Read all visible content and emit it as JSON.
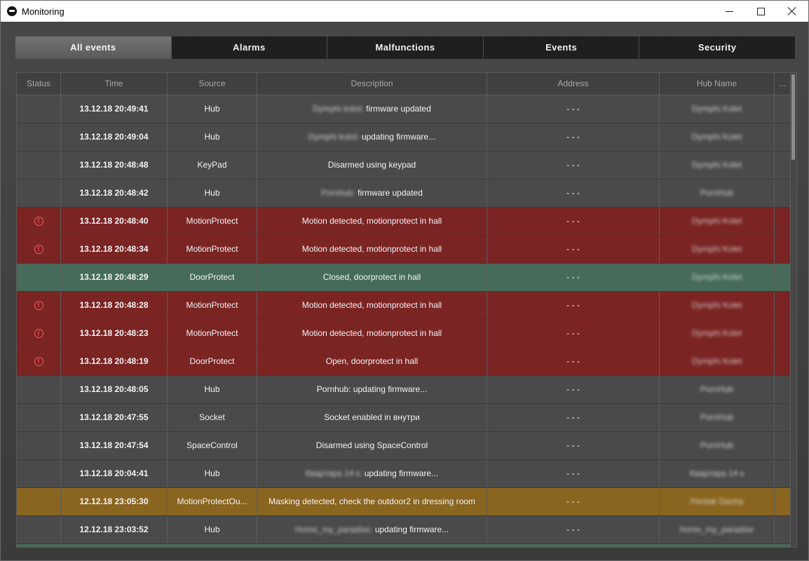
{
  "window": {
    "title": "Monitoring"
  },
  "tabs": [
    {
      "label": "All events",
      "active": true
    },
    {
      "label": "Alarms",
      "active": false
    },
    {
      "label": "Malfunctions",
      "active": false
    },
    {
      "label": "Events",
      "active": false
    },
    {
      "label": "Security",
      "active": false
    }
  ],
  "columns": [
    "Status",
    "Time",
    "Source",
    "Description",
    "Address",
    "Hub Name",
    "..."
  ],
  "rows": [
    {
      "type": "normal",
      "status": "",
      "time": "13.12.18   20:49:41",
      "source": "Hub",
      "desc_blur": "Dymphi kolot:",
      "desc": "firmware updated",
      "address": "- - -",
      "hub": "Dymphi Kolet"
    },
    {
      "type": "normal",
      "status": "",
      "time": "13.12.18   20:49:04",
      "source": "Hub",
      "desc_blur": "Dymphi kolot:",
      "desc": "updating firmware...",
      "address": "- - -",
      "hub": "Dymphi Kolet"
    },
    {
      "type": "normal",
      "status": "",
      "time": "13.12.18   20:48:48",
      "source": "KeyPad",
      "desc_blur": "",
      "desc": "Disarmed using keypad",
      "address": "- - -",
      "hub": "Dymphi Kolet"
    },
    {
      "type": "normal",
      "status": "",
      "time": "13.12.18   20:48:42",
      "source": "Hub",
      "desc_blur": "Pornhub:",
      "desc": "firmware updated",
      "address": "- - -",
      "hub": "PornHub"
    },
    {
      "type": "alarm",
      "status": "!",
      "time": "13.12.18   20:48:40",
      "source": "MotionProtect",
      "desc_blur": "",
      "desc": "Motion detected, motionprotect in hall",
      "address": "- - -",
      "hub": "Dymphi Kolet"
    },
    {
      "type": "alarm",
      "status": "!",
      "time": "13.12.18   20:48:34",
      "source": "MotionProtect",
      "desc_blur": "",
      "desc": "Motion detected, motionprotect in hall",
      "address": "- - -",
      "hub": "Dymphi Kolet"
    },
    {
      "type": "closed",
      "status": "",
      "time": "13.12.18   20:48:29",
      "source": "DoorProtect",
      "desc_blur": "",
      "desc": "Closed, doorprotect in hall",
      "address": "- - -",
      "hub": "Dymphi Kolet"
    },
    {
      "type": "alarm",
      "status": "!",
      "time": "13.12.18   20:48:28",
      "source": "MotionProtect",
      "desc_blur": "",
      "desc": "Motion detected, motionprotect in hall",
      "address": "- - -",
      "hub": "Dymphi Kolet"
    },
    {
      "type": "alarm",
      "status": "!",
      "time": "13.12.18   20:48:23",
      "source": "MotionProtect",
      "desc_blur": "",
      "desc": "Motion detected, motionprotect in hall",
      "address": "- - -",
      "hub": "Dymphi Kolet"
    },
    {
      "type": "alarm",
      "status": "!",
      "time": "13.12.18   20:48:19",
      "source": "DoorProtect",
      "desc_blur": "",
      "desc": "Open, doorprotect in hall",
      "address": "- - -",
      "hub": "Dymphi Kolet"
    },
    {
      "type": "normal",
      "status": "",
      "time": "13.12.18   20:48:05",
      "source": "Hub",
      "desc_blur": "",
      "desc": "Pornhub: updating firmware...",
      "address": "- - -",
      "hub": "PornHub"
    },
    {
      "type": "normal",
      "status": "",
      "time": "13.12.18   20:47:55",
      "source": "Socket",
      "desc_blur": "",
      "desc": "Socket enabled in внутри",
      "address": "- - -",
      "hub": "PornHub"
    },
    {
      "type": "normal",
      "status": "",
      "time": "13.12.18   20:47:54",
      "source": "SpaceControl",
      "desc_blur": "",
      "desc": "Disarmed using SpaceControl",
      "address": "- - -",
      "hub": "PornHub"
    },
    {
      "type": "normal",
      "status": "",
      "time": "13.12.18   20:04:41",
      "source": "Hub",
      "desc_blur": "Квартира 14 к:",
      "desc": "updating firmware...",
      "address": "- - -",
      "hub": "Квартира 14 к"
    },
    {
      "type": "mask",
      "status": "",
      "time": "12.12.18   23:05:30",
      "source": "MotionProtectOu...",
      "desc_blur": "",
      "desc": "Masking detected, check the outdoor2 in dressing room",
      "address": "- - -",
      "hub": "Pentak Dacha"
    },
    {
      "type": "normal",
      "status": "",
      "time": "12.12.18   23:03:52",
      "source": "Hub",
      "desc_blur": "Home_my_paradise:",
      "desc": "updating firmware...",
      "address": "- - -",
      "hub": "home_my_paradise"
    }
  ],
  "icons": {
    "app": "app-logo-icon",
    "status_alarm": "alert-circle-icon"
  },
  "colors": {
    "alarm_row": "#7a2424",
    "closed_row": "#466b5a",
    "masking_row": "#8a6520",
    "normal_row": "#4a4a4a",
    "active_tab": "#666666"
  }
}
